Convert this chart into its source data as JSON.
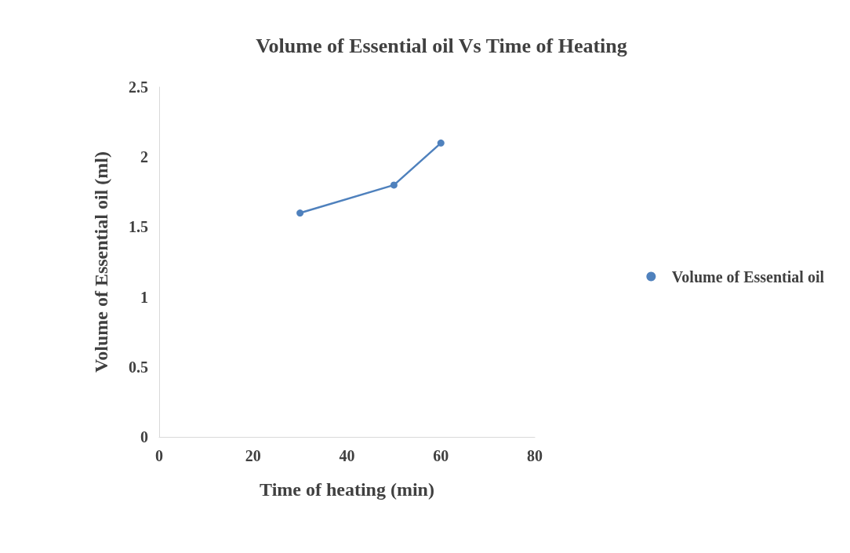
{
  "chart_data": {
    "type": "line",
    "title": "Volume of Essential oil Vs Time of Heating",
    "xlabel": "Time of heating (min)",
    "ylabel": "Volume of Essential oil (ml)",
    "x": [
      30,
      50,
      60
    ],
    "series": [
      {
        "name": "Volume of Essential oil",
        "color": "#4f81bd",
        "values": [
          1.6,
          1.8,
          2.1
        ]
      }
    ],
    "xlim": [
      0,
      80
    ],
    "xticks": [
      0,
      20,
      40,
      60,
      80
    ],
    "ylim": [
      0,
      2.5
    ],
    "yticks": [
      0,
      0.5,
      1,
      1.5,
      2,
      2.5
    ],
    "grid": false,
    "legend": "right",
    "marker": "circle",
    "line_style": "solid"
  }
}
